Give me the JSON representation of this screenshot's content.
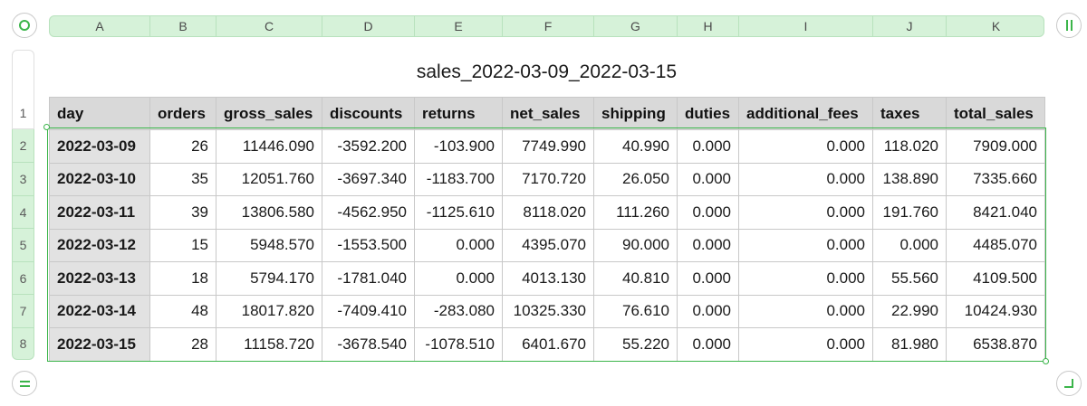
{
  "sheet": {
    "title": "sales_2022-03-09_2022-03-15",
    "column_letters": [
      "A",
      "B",
      "C",
      "D",
      "E",
      "F",
      "G",
      "H",
      "I",
      "J",
      "K"
    ],
    "row_numbers": [
      "1",
      "2",
      "3",
      "4",
      "5",
      "6",
      "7",
      "8"
    ]
  },
  "table": {
    "headers": [
      "day",
      "orders",
      "gross_sales",
      "discounts",
      "returns",
      "net_sales",
      "shipping",
      "duties",
      "additional_fees",
      "taxes",
      "total_sales"
    ],
    "rows": [
      [
        "2022-03-09",
        "26",
        "11446.090",
        "-3592.200",
        "-103.900",
        "7749.990",
        "40.990",
        "0.000",
        "0.000",
        "118.020",
        "7909.000"
      ],
      [
        "2022-03-10",
        "35",
        "12051.760",
        "-3697.340",
        "-1183.700",
        "7170.720",
        "26.050",
        "0.000",
        "0.000",
        "138.890",
        "7335.660"
      ],
      [
        "2022-03-11",
        "39",
        "13806.580",
        "-4562.950",
        "-1125.610",
        "8118.020",
        "111.260",
        "0.000",
        "0.000",
        "191.760",
        "8421.040"
      ],
      [
        "2022-03-12",
        "15",
        "5948.570",
        "-1553.500",
        "0.000",
        "4395.070",
        "90.000",
        "0.000",
        "0.000",
        "0.000",
        "4485.070"
      ],
      [
        "2022-03-13",
        "18",
        "5794.170",
        "-1781.040",
        "0.000",
        "4013.130",
        "40.810",
        "0.000",
        "0.000",
        "55.560",
        "4109.500"
      ],
      [
        "2022-03-14",
        "48",
        "18017.820",
        "-7409.410",
        "-283.080",
        "10325.330",
        "76.610",
        "0.000",
        "0.000",
        "22.990",
        "10424.930"
      ],
      [
        "2022-03-15",
        "28",
        "11158.720",
        "-3678.540",
        "-1078.510",
        "6401.670",
        "55.220",
        "0.000",
        "0.000",
        "81.980",
        "6538.870"
      ]
    ]
  },
  "controls": {
    "top_left_icon": "circle-icon",
    "top_right_icon": "pause-icon",
    "bottom_left_icon": "equals-icon",
    "bottom_right_icon": "resize-corner-icon"
  },
  "colors": {
    "accent": "#3bb54a",
    "header_bar": "#d6f2d9",
    "table_header": "#d9d9d9",
    "day_column": "#e2e2e2"
  }
}
